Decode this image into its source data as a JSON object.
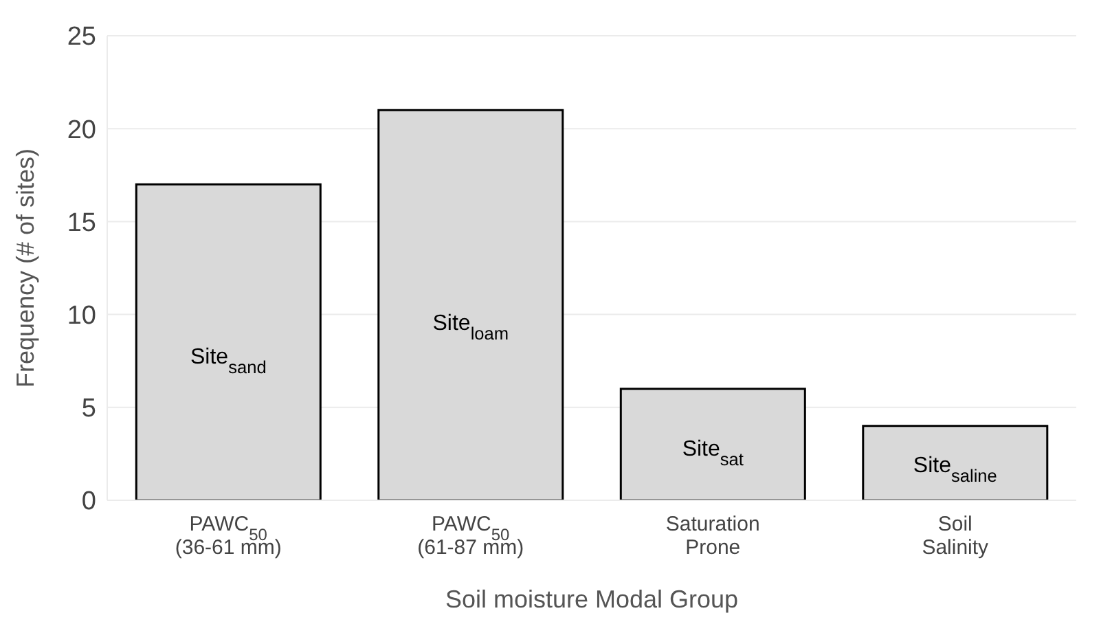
{
  "chart_data": {
    "type": "bar",
    "xlabel": "Soil moisture Modal Group",
    "ylabel": "Frequency (# of sites)",
    "categories": [
      "PAWC$_{50}$\n(36-61 mm)",
      "PAWC$_{50}$\n(61-87 mm)",
      "Saturation\nProne",
      "Soil\nSalinity"
    ],
    "values": [
      17,
      21,
      6,
      4
    ],
    "color": "#d9d9d9",
    "ylim": [
      0,
      25
    ],
    "yticks": [
      0,
      5,
      10,
      15,
      20,
      25
    ],
    "grid": "y",
    "annotations": [
      "Site$_{sand}$",
      "Site$_{loam}$",
      "Site$_{sat}$",
      "Site$_{saline}$"
    ]
  }
}
